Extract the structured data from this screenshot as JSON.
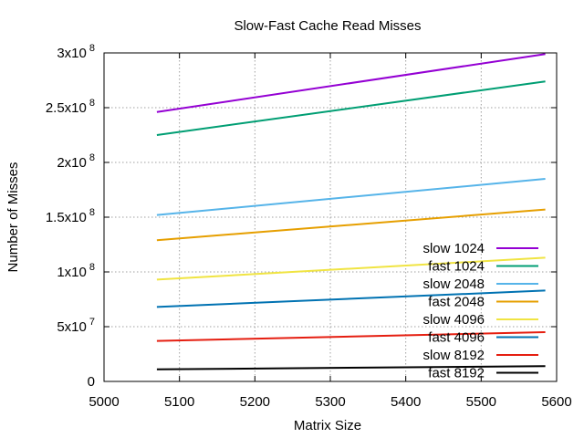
{
  "chart_data": {
    "type": "line",
    "title": "Slow-Fast Cache Read Misses",
    "xlabel": "Matrix Size",
    "ylabel": "Number of Misses",
    "xlim": [
      5000,
      5600
    ],
    "ylim": [
      0,
      300000000
    ],
    "grid": true,
    "legend_position": "bottom-right",
    "x_ticks": [
      {
        "value": 5000,
        "label": "5000"
      },
      {
        "value": 5100,
        "label": "5100"
      },
      {
        "value": 5200,
        "label": "5200"
      },
      {
        "value": 5300,
        "label": "5300"
      },
      {
        "value": 5400,
        "label": "5400"
      },
      {
        "value": 5500,
        "label": "5500"
      },
      {
        "value": 5600,
        "label": "5600"
      }
    ],
    "y_ticks": [
      {
        "value": 0,
        "mantissa": "0",
        "exponent": ""
      },
      {
        "value": 50000000,
        "mantissa": "5x10",
        "exponent": "7"
      },
      {
        "value": 100000000,
        "mantissa": "1x10",
        "exponent": "8"
      },
      {
        "value": 150000000,
        "mantissa": "1.5x10",
        "exponent": "8"
      },
      {
        "value": 200000000,
        "mantissa": "2x10",
        "exponent": "8"
      },
      {
        "value": 250000000,
        "mantissa": "2.5x10",
        "exponent": "8"
      },
      {
        "value": 300000000,
        "mantissa": "3x10",
        "exponent": "8"
      }
    ],
    "x": [
      5070,
      5585
    ],
    "series": [
      {
        "name": "slow 1024",
        "color": "#9400d3",
        "values": [
          246000000,
          299000000
        ]
      },
      {
        "name": "fast 1024",
        "color": "#009e73",
        "values": [
          225000000,
          274000000
        ]
      },
      {
        "name": "slow 2048",
        "color": "#56b4e9",
        "values": [
          152000000,
          185000000
        ]
      },
      {
        "name": "fast 2048",
        "color": "#e69f00",
        "values": [
          129000000,
          157000000
        ]
      },
      {
        "name": "slow 4096",
        "color": "#f0e442",
        "values": [
          93000000,
          113000000
        ]
      },
      {
        "name": "fast 4096",
        "color": "#0072b2",
        "values": [
          68000000,
          83000000
        ]
      },
      {
        "name": "slow 8192",
        "color": "#e51e10",
        "values": [
          37000000,
          45000000
        ]
      },
      {
        "name": "fast 8192",
        "color": "#000000",
        "values": [
          11000000,
          14000000
        ]
      }
    ]
  }
}
